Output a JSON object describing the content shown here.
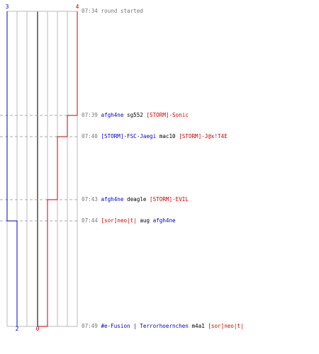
{
  "score": {
    "top_left": "3",
    "top_right": "4",
    "bottom_left": "2",
    "bottom_right": "0"
  },
  "colors": {
    "blue_team": "#0000cc",
    "red_team": "#cc0000",
    "grid": "#bbbbbb",
    "center_line": "#777777",
    "time_text": "#777777"
  },
  "events": [
    {
      "time": "07:34",
      "parts": [
        {
          "text": "round started",
          "team": "gray"
        }
      ]
    },
    {
      "time": "07:39",
      "parts": [
        {
          "text": "afgh4ne",
          "team": "blue"
        },
        {
          "text": "sg552",
          "team": "black"
        },
        {
          "text": "[STORM]-Sonic",
          "team": "red"
        }
      ]
    },
    {
      "time": "07:40",
      "parts": [
        {
          "text": "[STORM]-FSC-Jaegi",
          "team": "blue"
        },
        {
          "text": "mac10",
          "team": "black"
        },
        {
          "text": "[STORM]-J@x!T4E",
          "team": "red"
        }
      ]
    },
    {
      "time": "07:43",
      "parts": [
        {
          "text": "afgh4ne",
          "team": "blue"
        },
        {
          "text": "deagle",
          "team": "black"
        },
        {
          "text": "[STORM]-EVIL",
          "team": "red"
        }
      ]
    },
    {
      "time": "07:44",
      "parts": [
        {
          "text": "[sor]neo|t|",
          "team": "red"
        },
        {
          "text": "aug",
          "team": "black"
        },
        {
          "text": "afgh4ne",
          "team": "blue"
        }
      ]
    },
    {
      "time": "07:49",
      "parts": [
        {
          "text": "#e-Fusion | Terrorhoernchen",
          "team": "blue"
        },
        {
          "text": "m4a1",
          "team": "black"
        },
        {
          "text": "[sor]neo|t|",
          "team": "red"
        }
      ]
    }
  ]
}
